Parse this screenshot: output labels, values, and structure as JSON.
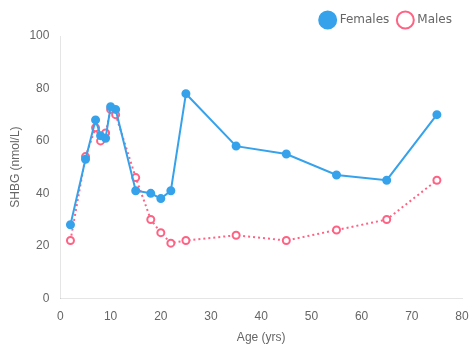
{
  "chart_data": {
    "type": "line",
    "x": [
      2,
      5,
      7,
      8,
      9,
      10,
      11,
      15,
      18,
      20,
      22,
      25,
      35,
      45,
      55,
      65,
      75
    ],
    "series": [
      {
        "name": "Females",
        "values": [
          28,
          53,
          68,
          62,
          61,
          73,
          72,
          41,
          40,
          38,
          41,
          78,
          58,
          55,
          47,
          45,
          70
        ],
        "line_style": "solid",
        "marker": "filled_circle"
      },
      {
        "name": "Males",
        "values": [
          22,
          54,
          65,
          60,
          63,
          72,
          70,
          46,
          30,
          25,
          21,
          22,
          24,
          22,
          26,
          30,
          45
        ],
        "line_style": "dotted",
        "marker": "open_circle"
      }
    ],
    "xlabel": "Age (yrs)",
    "ylabel": "SHBG (nmol/L)",
    "xlim": [
      0,
      80
    ],
    "ylim": [
      0,
      100
    ],
    "xticks": [
      0,
      10,
      20,
      30,
      40,
      50,
      60,
      70,
      80
    ],
    "yticks": [
      0,
      20,
      40,
      60,
      80,
      100
    ],
    "grid": false,
    "legend": "upper right"
  }
}
